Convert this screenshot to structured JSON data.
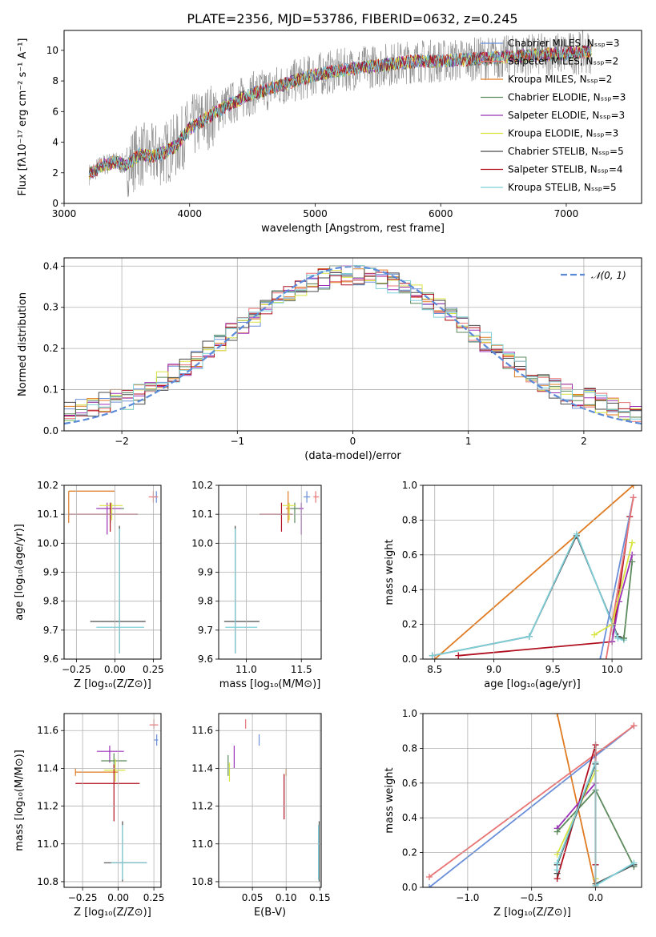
{
  "figure": {
    "title": "PLATE=2356, MJD=53786, FIBERID=0632, z=0.245"
  },
  "colors": {
    "Chabrier MILES": "#6a8fd8",
    "Salpeter MILES": "#e87474",
    "Kroupa MILES": "#e07b22",
    "Chabrier ELODIE": "#5c8a5c",
    "Salpeter ELODIE": "#9b30b8",
    "Kroupa ELODIE": "#d8e440",
    "Chabrier STELIB": "#4a4a4a",
    "Salpeter STELIB": "#b01020",
    "Kroupa STELIB": "#7ecfd8",
    "observed": "#808080",
    "gaussian": "#5b8ad8",
    "pink": "#e87fbd"
  },
  "chart_data": [
    {
      "id": "spectrum",
      "type": "line",
      "xlabel": "wavelength [Angstrom, rest frame]",
      "ylabel": "Flux [fλ10⁻¹⁷ erg cm⁻² s⁻¹ A⁻¹]",
      "xlim": [
        3000,
        7600
      ],
      "ylim": [
        0,
        11.3
      ],
      "xticks": [
        "3000",
        "4000",
        "5000",
        "6000",
        "7000"
      ],
      "yticks": [
        "0",
        "2",
        "4",
        "6",
        "8",
        "10"
      ],
      "legend": {
        "position": "upper right",
        "entries": [
          "Chabrier MILES, Nₛₛₚ=3",
          "Salpeter MILES, Nₛₛₚ=2",
          "Kroupa MILES, Nₛₛₚ=2",
          "Chabrier ELODIE, Nₛₛₚ=3",
          "Salpeter ELODIE, Nₛₛₚ=3",
          "Kroupa ELODIE, Nₛₛₚ=3",
          "Chabrier STELIB, Nₛₛₚ=5",
          "Salpeter STELIB, Nₛₛₚ=4",
          "Kroupa STELIB, Nₛₛₚ=5"
        ]
      },
      "model_continuum": {
        "x": [
          3200,
          3250,
          3300,
          3400,
          3500,
          3600,
          3700,
          3800,
          3900,
          4000,
          4100,
          4200,
          4300,
          4400,
          4500,
          4600,
          4800,
          5000,
          5200,
          5400,
          5600,
          5800,
          6000,
          6200,
          6400,
          6600,
          6800,
          7000,
          7200
        ],
        "y": [
          1.9,
          2.2,
          2.5,
          2.7,
          2.5,
          3.2,
          3.1,
          3.3,
          3.8,
          4.9,
          5.4,
          5.9,
          6.4,
          6.8,
          7.2,
          7.4,
          7.9,
          8.4,
          8.7,
          8.9,
          9.1,
          9.3,
          9.3,
          9.4,
          9.5,
          9.6,
          9.7,
          9.8,
          9.9
        ]
      },
      "observed_noise_amplitude": 1.8
    },
    {
      "id": "residuals",
      "type": "bar",
      "xlabel": "(data-model)/error",
      "ylabel": "Normed distribution",
      "xlim": [
        -2.5,
        2.5
      ],
      "ylim": [
        0,
        0.42
      ],
      "xticks": [
        "−2",
        "−1",
        "0",
        "1",
        "2"
      ],
      "yticks": [
        "0.0",
        "0.1",
        "0.2",
        "0.3",
        "0.4"
      ],
      "legend": {
        "position": "upper right",
        "entries": [
          "𝒩(0, 1)"
        ]
      },
      "bin_width": 0.1,
      "series_curve": "gaussian(0,1)"
    },
    {
      "id": "age_vs_Z",
      "type": "scatter",
      "xlabel": "Z [log₁₀(Z/Z⊙)]",
      "ylabel": "age  [log₁₀(age/yr)]",
      "xlim": [
        -0.33,
        0.3
      ],
      "ylim": [
        9.6,
        10.2
      ],
      "xticks": [
        "−0.25",
        "0.00",
        "0.25"
      ],
      "yticks": [
        "9.6",
        "9.7",
        "9.8",
        "9.9",
        "10.0",
        "10.1",
        "10.2"
      ],
      "points": [
        {
          "m": "Kroupa MILES",
          "x": -0.3,
          "y": 10.18,
          "xe": [
            -0.3,
            0.0
          ],
          "ye": [
            10.07,
            10.18
          ]
        },
        {
          "m": "Chabrier ELODIE",
          "x": -0.03,
          "y": 10.12,
          "xe": [
            -0.12,
            0.06
          ],
          "ye": [
            10.07,
            10.14
          ]
        },
        {
          "m": "Salpeter ELODIE",
          "x": -0.05,
          "y": 10.12,
          "xe": [
            -0.12,
            0.04
          ],
          "ye": [
            10.03,
            10.14
          ]
        },
        {
          "m": "Kroupa ELODIE",
          "x": -0.02,
          "y": 10.13,
          "xe": [
            -0.1,
            0.05
          ],
          "ye": [
            10.08,
            10.14
          ]
        },
        {
          "m": "Salpeter STELIB",
          "x": -0.03,
          "y": 10.1,
          "xe": [
            -0.3,
            0.15
          ],
          "ye": [
            10.04,
            10.14
          ]
        },
        {
          "m": "Chabrier STELIB",
          "x": 0.03,
          "y": 9.73,
          "xe": [
            -0.16,
            0.2
          ],
          "ye": [
            9.62,
            10.06
          ]
        },
        {
          "m": "Kroupa STELIB",
          "x": 0.03,
          "y": 9.71,
          "xe": [
            -0.12,
            0.19
          ],
          "ye": [
            9.62,
            10.05
          ]
        },
        {
          "m": "Chabrier MILES",
          "x": 0.27,
          "y": 10.16,
          "xe": [
            0.25,
            0.28
          ],
          "ye": [
            10.14,
            10.18
          ]
        },
        {
          "m": "Salpeter MILES",
          "x": 0.25,
          "y": 10.16,
          "xe": [
            0.22,
            0.28
          ],
          "ye": [
            10.14,
            10.18
          ]
        }
      ]
    },
    {
      "id": "age_vs_mass",
      "type": "scatter",
      "xlabel": "mass [log₁₀(M/M⊙)]",
      "ylabel": "",
      "xlim": [
        10.75,
        11.68
      ],
      "ylim": [
        9.6,
        10.2
      ],
      "xticks": [
        "11.0",
        "11.5"
      ],
      "yticks": [
        "9.6",
        "9.7",
        "9.8",
        "9.9",
        "10.0",
        "10.1",
        "10.2"
      ],
      "points": [
        {
          "m": "Kroupa MILES",
          "x": 11.38,
          "y": 10.12,
          "xe": [
            11.36,
            11.4
          ],
          "ye": [
            10.07,
            10.18
          ]
        },
        {
          "m": "Salpeter STELIB",
          "x": 11.32,
          "y": 10.1,
          "xe": [
            11.12,
            11.42
          ],
          "ye": [
            10.04,
            10.14
          ]
        },
        {
          "m": "Salpeter ELODIE",
          "x": 11.5,
          "y": 10.12,
          "xe": [
            11.45,
            11.52
          ],
          "ye": [
            10.03,
            10.14
          ]
        },
        {
          "m": "Chabrier ELODIE",
          "x": 11.44,
          "y": 10.12,
          "xe": [
            11.4,
            11.48
          ],
          "ye": [
            10.07,
            10.14
          ]
        },
        {
          "m": "Kroupa ELODIE",
          "x": 11.39,
          "y": 10.13,
          "xe": [
            11.33,
            11.45
          ],
          "ye": [
            10.08,
            10.14
          ]
        },
        {
          "m": "Chabrier MILES",
          "x": 11.55,
          "y": 10.16,
          "xe": [
            11.52,
            11.58
          ],
          "ye": [
            10.14,
            10.18
          ]
        },
        {
          "m": "Salpeter MILES",
          "x": 11.63,
          "y": 10.16,
          "xe": [
            11.61,
            11.66
          ],
          "ye": [
            10.14,
            10.18
          ]
        },
        {
          "m": "Chabrier STELIB",
          "x": 10.9,
          "y": 9.73,
          "xe": [
            10.8,
            11.12
          ],
          "ye": [
            9.62,
            10.06
          ]
        },
        {
          "m": "Kroupa STELIB",
          "x": 10.9,
          "y": 9.71,
          "xe": [
            10.81,
            11.1
          ],
          "ye": [
            9.62,
            10.05
          ]
        }
      ]
    },
    {
      "id": "weight_vs_age",
      "type": "line",
      "xlabel": "age  [log₁₀(age/yr)]",
      "ylabel": "mass weight",
      "xlim": [
        8.4,
        10.25
      ],
      "ylim": [
        0,
        1
      ],
      "xticks": [
        "8.5",
        "9.0",
        "9.5",
        "10.0"
      ],
      "yticks": [
        "0.0",
        "0.2",
        "0.4",
        "0.6",
        "0.8",
        "1.0"
      ],
      "series": [
        {
          "m": "Kroupa MILES",
          "x": [
            8.5,
            10.18
          ],
          "y": [
            0.0,
            1.0
          ]
        },
        {
          "m": "Salpeter STELIB",
          "x": [
            8.7,
            10.0,
            10.15
          ],
          "y": [
            0.02,
            0.1,
            0.82
          ]
        },
        {
          "m": "Chabrier STELIB",
          "x": [
            8.48,
            9.3,
            9.7,
            10.05,
            10.1
          ],
          "y": [
            0.02,
            0.13,
            0.71,
            0.13,
            0.12
          ]
        },
        {
          "m": "Kroupa STELIB",
          "x": [
            8.48,
            9.3,
            9.7,
            10.05,
            10.1
          ],
          "y": [
            0.02,
            0.13,
            0.72,
            0.12,
            0.11
          ]
        },
        {
          "m": "Chabrier MILES",
          "x": [
            9.9,
            10.18
          ],
          "y": [
            0.0,
            0.93
          ]
        },
        {
          "m": "Salpeter MILES",
          "x": [
            9.95,
            10.18
          ],
          "y": [
            0.0,
            0.93
          ]
        },
        {
          "m": "Salpeter ELODIE",
          "x": [
            10.0,
            10.06,
            10.17
          ],
          "y": [
            0.1,
            0.33,
            0.6
          ]
        },
        {
          "m": "Chabrier ELODIE",
          "x": [
            10.1,
            10.17
          ],
          "y": [
            0.12,
            0.56
          ]
        },
        {
          "m": "Kroupa ELODIE",
          "x": [
            9.85,
            10.0,
            10.17
          ],
          "y": [
            0.14,
            0.2,
            0.67
          ]
        }
      ]
    },
    {
      "id": "mass_vs_Z",
      "type": "scatter",
      "xlabel": "Z [log₁₀(Z/Z⊙)]",
      "ylabel": "mass [log₁₀(M/M⊙)]",
      "xlim": [
        -0.38,
        0.3
      ],
      "ylim": [
        10.77,
        11.69
      ],
      "xticks": [
        "−0.25",
        "0.00",
        "0.25"
      ],
      "yticks": [
        "10.8",
        "11.0",
        "11.2",
        "11.4",
        "11.6"
      ],
      "points": [
        {
          "m": "Salpeter ELODIE",
          "x": -0.06,
          "y": 11.49,
          "xe": [
            -0.15,
            0.04
          ],
          "ye": [
            11.43,
            11.52
          ]
        },
        {
          "m": "Chabrier ELODIE",
          "x": -0.03,
          "y": 11.44,
          "xe": [
            -0.12,
            0.06
          ],
          "ye": [
            11.4,
            11.48
          ]
        },
        {
          "m": "Kroupa ELODIE",
          "x": -0.02,
          "y": 11.39,
          "xe": [
            -0.1,
            0.05
          ],
          "ye": [
            11.33,
            11.45
          ]
        },
        {
          "m": "Kroupa MILES",
          "x": -0.3,
          "y": 11.38,
          "xe": [
            -0.3,
            0.0
          ],
          "ye": [
            11.36,
            11.4
          ]
        },
        {
          "m": "Salpeter STELIB",
          "x": -0.03,
          "y": 11.32,
          "xe": [
            -0.3,
            0.15
          ],
          "ye": [
            11.12,
            11.42
          ]
        },
        {
          "m": "Chabrier MILES",
          "x": 0.27,
          "y": 11.55,
          "xe": [
            0.25,
            0.28
          ],
          "ye": [
            11.52,
            11.58
          ]
        },
        {
          "m": "Salpeter MILES",
          "x": 0.25,
          "y": 11.63,
          "xe": [
            0.22,
            0.28
          ],
          "ye": [
            11.61,
            11.66
          ]
        },
        {
          "m": "Chabrier STELIB",
          "x": 0.03,
          "y": 10.9,
          "xe": [
            -0.1,
            0.2
          ],
          "ye": [
            10.8,
            11.12
          ]
        },
        {
          "m": "Kroupa STELIB",
          "x": 0.03,
          "y": 10.9,
          "xe": [
            -0.05,
            0.2
          ],
          "ye": [
            10.81,
            11.1
          ]
        }
      ]
    },
    {
      "id": "mass_vs_EBV",
      "type": "scatter",
      "xlabel": "E(B-V)",
      "ylabel": "",
      "xlim": [
        0.0,
        0.152
      ],
      "ylim": [
        10.77,
        11.69
      ],
      "xticks": [
        "0.05",
        "0.10",
        "0.15"
      ],
      "yticks": [
        "10.8",
        "11.0",
        "11.2",
        "11.4",
        "11.6"
      ],
      "points": [
        {
          "m": "Salpeter MILES",
          "x": 0.04,
          "y": 11.63,
          "ye": [
            11.61,
            11.66
          ]
        },
        {
          "m": "Chabrier MILES",
          "x": 0.06,
          "y": 11.55,
          "ye": [
            11.52,
            11.58
          ]
        },
        {
          "m": "Salpeter ELODIE",
          "x": 0.023,
          "y": 11.46,
          "ye": [
            11.4,
            11.52
          ]
        },
        {
          "m": "Chabrier ELODIE",
          "x": 0.014,
          "y": 11.42,
          "ye": [
            11.36,
            11.47
          ]
        },
        {
          "m": "Kroupa ELODIE",
          "x": 0.016,
          "y": 11.38,
          "ye": [
            11.33,
            11.43
          ]
        },
        {
          "m": "Kroupa MILES",
          "x": 0.1,
          "y": 11.38,
          "ye": [
            11.36,
            11.4
          ]
        },
        {
          "m": "Salpeter STELIB",
          "x": 0.097,
          "y": 11.25,
          "ye": [
            11.13,
            11.37
          ]
        },
        {
          "m": "Chabrier STELIB",
          "x": 0.149,
          "y": 10.95,
          "ye": [
            10.8,
            11.12
          ]
        },
        {
          "m": "Kroupa STELIB",
          "x": 0.148,
          "y": 10.95,
          "ye": [
            10.81,
            11.1
          ]
        }
      ]
    },
    {
      "id": "weight_vs_Z",
      "type": "line",
      "xlabel": "Z [log₁₀(Z/Z⊙)]",
      "ylabel": "mass weight",
      "xlim": [
        -1.35,
        0.36
      ],
      "ylim": [
        0,
        1
      ],
      "xticks": [
        "−1.0",
        "−0.5",
        "0.0"
      ],
      "yticks": [
        "0.0",
        "0.2",
        "0.4",
        "0.6",
        "0.8",
        "1.0"
      ],
      "series": [
        {
          "m": "Kroupa MILES",
          "x": [
            -0.3,
            0.0
          ],
          "y": [
            1.0,
            0.0
          ]
        },
        {
          "m": "Chabrier MILES",
          "x": [
            -1.3,
            0.3
          ],
          "y": [
            0.0,
            0.93
          ]
        },
        {
          "m": "Salpeter MILES",
          "x": [
            -1.3,
            0.3
          ],
          "y": [
            0.06,
            0.93
          ]
        },
        {
          "m": "Salpeter STELIB",
          "x": [
            -0.3,
            0.0,
            0.0
          ],
          "y": [
            0.05,
            0.82,
            0.13
          ]
        },
        {
          "m": "Salpeter ELODIE",
          "x": [
            -0.3,
            0.0,
            0.0
          ],
          "y": [
            0.34,
            0.6,
            0.05
          ]
        },
        {
          "m": "Chabrier ELODIE",
          "x": [
            -0.3,
            0.0,
            0.3
          ],
          "y": [
            0.32,
            0.56,
            0.12
          ]
        },
        {
          "m": "Kroupa ELODIE",
          "x": [
            -0.3,
            0.0,
            0.0
          ],
          "y": [
            0.19,
            0.67,
            0.05
          ]
        },
        {
          "m": "Chabrier STELIB",
          "x": [
            -0.3,
            -0.3,
            0.0,
            0.0,
            0.3
          ],
          "y": [
            0.08,
            0.13,
            0.71,
            0.02,
            0.13
          ]
        },
        {
          "m": "Kroupa STELIB",
          "x": [
            -0.3,
            -0.3,
            0.0,
            0.0,
            0.3
          ],
          "y": [
            0.1,
            0.14,
            0.72,
            0.01,
            0.14
          ]
        }
      ]
    }
  ]
}
